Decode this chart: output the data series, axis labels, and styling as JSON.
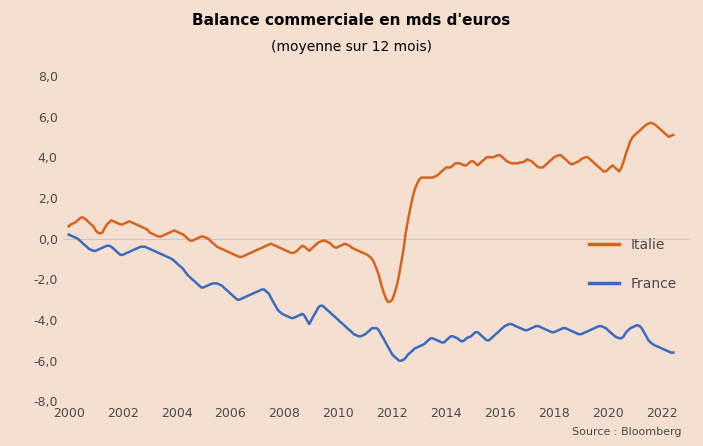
{
  "title_line1": "Balance commerciale en mds d'euros",
  "title_line2": "(moyenne sur 12 mois)",
  "background_color": "#f5dfd0",
  "italie_color": "#d4651e",
  "france_color": "#3a6bbf",
  "ylim": [
    -8.0,
    8.0
  ],
  "yticks": [
    -8.0,
    -6.0,
    -4.0,
    -2.0,
    0.0,
    2.0,
    4.0,
    6.0,
    8.0
  ],
  "xlim": [
    1999.8,
    2023.0
  ],
  "xticks": [
    2000,
    2002,
    2004,
    2006,
    2008,
    2010,
    2012,
    2014,
    2016,
    2018,
    2020,
    2022
  ],
  "source_text": "Source : Bloomberg",
  "legend_italie": "Italie",
  "legend_france": "France",
  "italie_x": [
    2000.0,
    2000.08,
    2000.17,
    2000.25,
    2000.33,
    2000.42,
    2000.5,
    2000.58,
    2000.67,
    2000.75,
    2000.83,
    2000.92,
    2001.0,
    2001.08,
    2001.17,
    2001.25,
    2001.33,
    2001.42,
    2001.5,
    2001.58,
    2001.67,
    2001.75,
    2001.83,
    2001.92,
    2002.0,
    2002.08,
    2002.17,
    2002.25,
    2002.33,
    2002.42,
    2002.5,
    2002.58,
    2002.67,
    2002.75,
    2002.83,
    2002.92,
    2003.0,
    2003.08,
    2003.17,
    2003.25,
    2003.33,
    2003.42,
    2003.5,
    2003.58,
    2003.67,
    2003.75,
    2003.83,
    2003.92,
    2004.0,
    2004.08,
    2004.17,
    2004.25,
    2004.33,
    2004.42,
    2004.5,
    2004.58,
    2004.67,
    2004.75,
    2004.83,
    2004.92,
    2005.0,
    2005.08,
    2005.17,
    2005.25,
    2005.33,
    2005.42,
    2005.5,
    2005.58,
    2005.67,
    2005.75,
    2005.83,
    2005.92,
    2006.0,
    2006.08,
    2006.17,
    2006.25,
    2006.33,
    2006.42,
    2006.5,
    2006.58,
    2006.67,
    2006.75,
    2006.83,
    2006.92,
    2007.0,
    2007.08,
    2007.17,
    2007.25,
    2007.33,
    2007.42,
    2007.5,
    2007.58,
    2007.67,
    2007.75,
    2007.83,
    2007.92,
    2008.0,
    2008.08,
    2008.17,
    2008.25,
    2008.33,
    2008.42,
    2008.5,
    2008.58,
    2008.67,
    2008.75,
    2008.83,
    2008.92,
    2009.0,
    2009.08,
    2009.17,
    2009.25,
    2009.33,
    2009.42,
    2009.5,
    2009.58,
    2009.67,
    2009.75,
    2009.83,
    2009.92,
    2010.0,
    2010.08,
    2010.17,
    2010.25,
    2010.33,
    2010.42,
    2010.5,
    2010.58,
    2010.67,
    2010.75,
    2010.83,
    2010.92,
    2011.0,
    2011.08,
    2011.17,
    2011.25,
    2011.33,
    2011.42,
    2011.5,
    2011.58,
    2011.67,
    2011.75,
    2011.83,
    2011.92,
    2012.0,
    2012.08,
    2012.17,
    2012.25,
    2012.33,
    2012.42,
    2012.5,
    2012.58,
    2012.67,
    2012.75,
    2012.83,
    2012.92,
    2013.0,
    2013.08,
    2013.17,
    2013.25,
    2013.33,
    2013.42,
    2013.5,
    2013.58,
    2013.67,
    2013.75,
    2013.83,
    2013.92,
    2014.0,
    2014.08,
    2014.17,
    2014.25,
    2014.33,
    2014.42,
    2014.5,
    2014.58,
    2014.67,
    2014.75,
    2014.83,
    2014.92,
    2015.0,
    2015.08,
    2015.17,
    2015.25,
    2015.33,
    2015.42,
    2015.5,
    2015.58,
    2015.67,
    2015.75,
    2015.83,
    2015.92,
    2016.0,
    2016.08,
    2016.17,
    2016.25,
    2016.33,
    2016.42,
    2016.5,
    2016.58,
    2016.67,
    2016.75,
    2016.83,
    2016.92,
    2017.0,
    2017.08,
    2017.17,
    2017.25,
    2017.33,
    2017.42,
    2017.5,
    2017.58,
    2017.67,
    2017.75,
    2017.83,
    2017.92,
    2018.0,
    2018.08,
    2018.17,
    2018.25,
    2018.33,
    2018.42,
    2018.5,
    2018.58,
    2018.67,
    2018.75,
    2018.83,
    2018.92,
    2019.0,
    2019.08,
    2019.17,
    2019.25,
    2019.33,
    2019.42,
    2019.5,
    2019.58,
    2019.67,
    2019.75,
    2019.83,
    2019.92,
    2020.0,
    2020.08,
    2020.17,
    2020.25,
    2020.33,
    2020.42,
    2020.5,
    2020.58,
    2020.67,
    2020.75,
    2020.83,
    2020.92,
    2021.0,
    2021.08,
    2021.17,
    2021.25,
    2021.33,
    2021.42,
    2021.5,
    2021.58,
    2021.67,
    2021.75,
    2021.83,
    2021.92,
    2022.0,
    2022.08,
    2022.17,
    2022.25,
    2022.33,
    2022.42
  ],
  "italie_y": [
    0.6,
    0.7,
    0.75,
    0.8,
    0.9,
    1.0,
    1.05,
    1.0,
    0.9,
    0.8,
    0.7,
    0.6,
    0.4,
    0.3,
    0.25,
    0.3,
    0.5,
    0.7,
    0.8,
    0.9,
    0.85,
    0.8,
    0.75,
    0.7,
    0.7,
    0.75,
    0.8,
    0.85,
    0.8,
    0.75,
    0.7,
    0.65,
    0.6,
    0.55,
    0.5,
    0.45,
    0.3,
    0.25,
    0.2,
    0.15,
    0.1,
    0.1,
    0.15,
    0.2,
    0.25,
    0.3,
    0.35,
    0.4,
    0.35,
    0.3,
    0.25,
    0.2,
    0.1,
    0.0,
    -0.1,
    -0.1,
    -0.05,
    0.0,
    0.05,
    0.1,
    0.1,
    0.05,
    0.0,
    -0.1,
    -0.2,
    -0.3,
    -0.4,
    -0.45,
    -0.5,
    -0.55,
    -0.6,
    -0.65,
    -0.7,
    -0.75,
    -0.8,
    -0.85,
    -0.9,
    -0.9,
    -0.85,
    -0.8,
    -0.75,
    -0.7,
    -0.65,
    -0.6,
    -0.55,
    -0.5,
    -0.45,
    -0.4,
    -0.35,
    -0.3,
    -0.25,
    -0.3,
    -0.35,
    -0.4,
    -0.45,
    -0.5,
    -0.55,
    -0.6,
    -0.65,
    -0.7,
    -0.7,
    -0.65,
    -0.55,
    -0.45,
    -0.35,
    -0.4,
    -0.5,
    -0.6,
    -0.5,
    -0.4,
    -0.3,
    -0.2,
    -0.15,
    -0.1,
    -0.1,
    -0.15,
    -0.2,
    -0.3,
    -0.4,
    -0.45,
    -0.4,
    -0.35,
    -0.3,
    -0.25,
    -0.3,
    -0.35,
    -0.45,
    -0.5,
    -0.55,
    -0.6,
    -0.65,
    -0.7,
    -0.75,
    -0.8,
    -0.9,
    -1.0,
    -1.2,
    -1.5,
    -1.8,
    -2.2,
    -2.6,
    -2.9,
    -3.1,
    -3.1,
    -3.0,
    -2.7,
    -2.3,
    -1.8,
    -1.2,
    -0.5,
    0.3,
    0.9,
    1.5,
    2.0,
    2.4,
    2.7,
    2.9,
    3.0,
    3.0,
    3.0,
    3.0,
    3.0,
    3.0,
    3.05,
    3.1,
    3.2,
    3.3,
    3.4,
    3.5,
    3.5,
    3.5,
    3.6,
    3.7,
    3.7,
    3.7,
    3.65,
    3.6,
    3.6,
    3.7,
    3.8,
    3.8,
    3.7,
    3.6,
    3.7,
    3.8,
    3.9,
    4.0,
    4.0,
    4.0,
    4.0,
    4.05,
    4.1,
    4.1,
    4.0,
    3.9,
    3.8,
    3.75,
    3.7,
    3.7,
    3.7,
    3.7,
    3.75,
    3.75,
    3.8,
    3.9,
    3.85,
    3.8,
    3.7,
    3.6,
    3.5,
    3.5,
    3.5,
    3.6,
    3.7,
    3.8,
    3.9,
    4.0,
    4.05,
    4.1,
    4.1,
    4.0,
    3.9,
    3.8,
    3.7,
    3.65,
    3.7,
    3.75,
    3.8,
    3.9,
    3.95,
    4.0,
    4.0,
    3.9,
    3.8,
    3.7,
    3.6,
    3.5,
    3.4,
    3.3,
    3.3,
    3.4,
    3.5,
    3.6,
    3.5,
    3.4,
    3.3,
    3.5,
    3.8,
    4.2,
    4.5,
    4.8,
    5.0,
    5.1,
    5.2,
    5.3,
    5.4,
    5.5,
    5.6,
    5.65,
    5.7,
    5.65,
    5.6,
    5.5,
    5.4,
    5.3,
    5.2,
    5.1,
    5.0,
    5.05,
    5.1
  ],
  "france_x": [
    2000.0,
    2000.08,
    2000.17,
    2000.25,
    2000.33,
    2000.42,
    2000.5,
    2000.58,
    2000.67,
    2000.75,
    2000.83,
    2000.92,
    2001.0,
    2001.08,
    2001.17,
    2001.25,
    2001.33,
    2001.42,
    2001.5,
    2001.58,
    2001.67,
    2001.75,
    2001.83,
    2001.92,
    2002.0,
    2002.08,
    2002.17,
    2002.25,
    2002.33,
    2002.42,
    2002.5,
    2002.58,
    2002.67,
    2002.75,
    2002.83,
    2002.92,
    2003.0,
    2003.08,
    2003.17,
    2003.25,
    2003.33,
    2003.42,
    2003.5,
    2003.58,
    2003.67,
    2003.75,
    2003.83,
    2003.92,
    2004.0,
    2004.08,
    2004.17,
    2004.25,
    2004.33,
    2004.42,
    2004.5,
    2004.58,
    2004.67,
    2004.75,
    2004.83,
    2004.92,
    2005.0,
    2005.08,
    2005.17,
    2005.25,
    2005.33,
    2005.42,
    2005.5,
    2005.58,
    2005.67,
    2005.75,
    2005.83,
    2005.92,
    2006.0,
    2006.08,
    2006.17,
    2006.25,
    2006.33,
    2006.42,
    2006.5,
    2006.58,
    2006.67,
    2006.75,
    2006.83,
    2006.92,
    2007.0,
    2007.08,
    2007.17,
    2007.25,
    2007.33,
    2007.42,
    2007.5,
    2007.58,
    2007.67,
    2007.75,
    2007.83,
    2007.92,
    2008.0,
    2008.08,
    2008.17,
    2008.25,
    2008.33,
    2008.42,
    2008.5,
    2008.58,
    2008.67,
    2008.75,
    2008.83,
    2008.92,
    2009.0,
    2009.08,
    2009.17,
    2009.25,
    2009.33,
    2009.42,
    2009.5,
    2009.58,
    2009.67,
    2009.75,
    2009.83,
    2009.92,
    2010.0,
    2010.08,
    2010.17,
    2010.25,
    2010.33,
    2010.42,
    2010.5,
    2010.58,
    2010.67,
    2010.75,
    2010.83,
    2010.92,
    2011.0,
    2011.08,
    2011.17,
    2011.25,
    2011.33,
    2011.42,
    2011.5,
    2011.58,
    2011.67,
    2011.75,
    2011.83,
    2011.92,
    2012.0,
    2012.08,
    2012.17,
    2012.25,
    2012.33,
    2012.42,
    2012.5,
    2012.58,
    2012.67,
    2012.75,
    2012.83,
    2012.92,
    2013.0,
    2013.08,
    2013.17,
    2013.25,
    2013.33,
    2013.42,
    2013.5,
    2013.58,
    2013.67,
    2013.75,
    2013.83,
    2013.92,
    2014.0,
    2014.08,
    2014.17,
    2014.25,
    2014.33,
    2014.42,
    2014.5,
    2014.58,
    2014.67,
    2014.75,
    2014.83,
    2014.92,
    2015.0,
    2015.08,
    2015.17,
    2015.25,
    2015.33,
    2015.42,
    2015.5,
    2015.58,
    2015.67,
    2015.75,
    2015.83,
    2015.92,
    2016.0,
    2016.08,
    2016.17,
    2016.25,
    2016.33,
    2016.42,
    2016.5,
    2016.58,
    2016.67,
    2016.75,
    2016.83,
    2016.92,
    2017.0,
    2017.08,
    2017.17,
    2017.25,
    2017.33,
    2017.42,
    2017.5,
    2017.58,
    2017.67,
    2017.75,
    2017.83,
    2017.92,
    2018.0,
    2018.08,
    2018.17,
    2018.25,
    2018.33,
    2018.42,
    2018.5,
    2018.58,
    2018.67,
    2018.75,
    2018.83,
    2018.92,
    2019.0,
    2019.08,
    2019.17,
    2019.25,
    2019.33,
    2019.42,
    2019.5,
    2019.58,
    2019.67,
    2019.75,
    2019.83,
    2019.92,
    2020.0,
    2020.08,
    2020.17,
    2020.25,
    2020.33,
    2020.42,
    2020.5,
    2020.58,
    2020.67,
    2020.75,
    2020.83,
    2020.92,
    2021.0,
    2021.08,
    2021.17,
    2021.25,
    2021.33,
    2021.42,
    2021.5,
    2021.58,
    2021.67,
    2021.75,
    2021.83,
    2021.92,
    2022.0,
    2022.08,
    2022.17,
    2022.25,
    2022.33,
    2022.42
  ],
  "france_y": [
    0.2,
    0.15,
    0.1,
    0.05,
    0.0,
    -0.1,
    -0.2,
    -0.3,
    -0.4,
    -0.5,
    -0.55,
    -0.6,
    -0.6,
    -0.55,
    -0.5,
    -0.45,
    -0.4,
    -0.35,
    -0.35,
    -0.4,
    -0.5,
    -0.6,
    -0.7,
    -0.8,
    -0.8,
    -0.75,
    -0.7,
    -0.65,
    -0.6,
    -0.55,
    -0.5,
    -0.45,
    -0.4,
    -0.4,
    -0.4,
    -0.45,
    -0.5,
    -0.55,
    -0.6,
    -0.65,
    -0.7,
    -0.75,
    -0.8,
    -0.85,
    -0.9,
    -0.95,
    -1.0,
    -1.1,
    -1.2,
    -1.3,
    -1.4,
    -1.5,
    -1.65,
    -1.8,
    -1.9,
    -2.0,
    -2.1,
    -2.2,
    -2.3,
    -2.4,
    -2.4,
    -2.35,
    -2.3,
    -2.25,
    -2.2,
    -2.2,
    -2.2,
    -2.25,
    -2.3,
    -2.4,
    -2.5,
    -2.6,
    -2.7,
    -2.8,
    -2.9,
    -3.0,
    -3.0,
    -2.95,
    -2.9,
    -2.85,
    -2.8,
    -2.75,
    -2.7,
    -2.65,
    -2.6,
    -2.55,
    -2.5,
    -2.5,
    -2.6,
    -2.7,
    -2.9,
    -3.1,
    -3.3,
    -3.5,
    -3.6,
    -3.7,
    -3.75,
    -3.8,
    -3.85,
    -3.9,
    -3.9,
    -3.85,
    -3.8,
    -3.75,
    -3.7,
    -3.8,
    -4.0,
    -4.2,
    -4.0,
    -3.8,
    -3.6,
    -3.4,
    -3.3,
    -3.3,
    -3.4,
    -3.5,
    -3.6,
    -3.7,
    -3.8,
    -3.9,
    -4.0,
    -4.1,
    -4.2,
    -4.3,
    -4.4,
    -4.5,
    -4.6,
    -4.7,
    -4.75,
    -4.8,
    -4.8,
    -4.75,
    -4.7,
    -4.6,
    -4.5,
    -4.4,
    -4.4,
    -4.4,
    -4.5,
    -4.7,
    -4.9,
    -5.1,
    -5.3,
    -5.5,
    -5.7,
    -5.8,
    -5.9,
    -6.0,
    -6.0,
    -5.95,
    -5.85,
    -5.7,
    -5.6,
    -5.5,
    -5.4,
    -5.35,
    -5.3,
    -5.25,
    -5.2,
    -5.1,
    -5.0,
    -4.9,
    -4.9,
    -4.95,
    -5.0,
    -5.05,
    -5.1,
    -5.1,
    -5.0,
    -4.9,
    -4.8,
    -4.8,
    -4.85,
    -4.9,
    -5.0,
    -5.05,
    -5.0,
    -4.9,
    -4.85,
    -4.8,
    -4.7,
    -4.6,
    -4.6,
    -4.7,
    -4.8,
    -4.9,
    -5.0,
    -5.0,
    -4.9,
    -4.8,
    -4.7,
    -4.6,
    -4.5,
    -4.4,
    -4.3,
    -4.25,
    -4.2,
    -4.2,
    -4.25,
    -4.3,
    -4.35,
    -4.4,
    -4.45,
    -4.5,
    -4.5,
    -4.45,
    -4.4,
    -4.35,
    -4.3,
    -4.3,
    -4.35,
    -4.4,
    -4.45,
    -4.5,
    -4.55,
    -4.6,
    -4.6,
    -4.55,
    -4.5,
    -4.45,
    -4.4,
    -4.4,
    -4.45,
    -4.5,
    -4.55,
    -4.6,
    -4.65,
    -4.7,
    -4.7,
    -4.65,
    -4.6,
    -4.55,
    -4.5,
    -4.45,
    -4.4,
    -4.35,
    -4.3,
    -4.3,
    -4.35,
    -4.4,
    -4.5,
    -4.6,
    -4.7,
    -4.8,
    -4.85,
    -4.9,
    -4.9,
    -4.8,
    -4.6,
    -4.5,
    -4.4,
    -4.35,
    -4.3,
    -4.25,
    -4.3,
    -4.4,
    -4.6,
    -4.8,
    -5.0,
    -5.1,
    -5.2,
    -5.25,
    -5.3,
    -5.35,
    -5.4,
    -5.45,
    -5.5,
    -5.55,
    -5.6,
    -5.6
  ],
  "text_color": "#4a4a4a",
  "zero_line_color": "#c8c8c8",
  "linewidth": 1.8
}
